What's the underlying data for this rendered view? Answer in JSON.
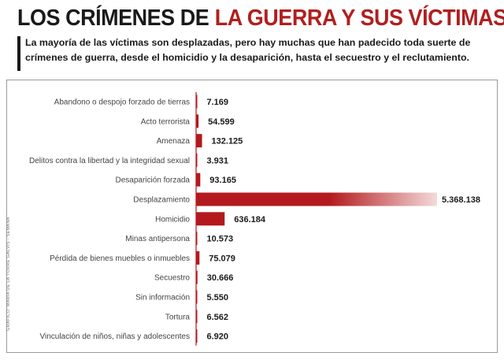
{
  "title": {
    "part1": "LOS CRÍMENES DE",
    "part2": "LA GUERRA Y SUS VÍCTIMAS"
  },
  "subtitle": "La mayoría de las víctimas son desplazadas, pero hay muchas que han padecido toda suerte de crímenes de guerra, desde el homicidio y la desaparición, hasta el secuestro y el reclutamiento.",
  "credit": "GRÁFICO: MARÍA DE LA TORRE GALVIS - SEMANA",
  "colors": {
    "bar": "#b3191d",
    "bar_light": "#f4dada",
    "axis": "#b3191d",
    "title_red": "#b01f1f"
  },
  "chart_data": {
    "type": "bar",
    "orientation": "horizontal",
    "categories": [
      "Abandono o despojo forzado de tierras",
      "Acto terrorista",
      "Amenaza",
      "Delitos contra la libertad y la integridad sexual",
      "Desaparición forzada",
      "Desplazamiento",
      "Homicidio",
      "Minas antipersona",
      "Pérdida de bienes muebles o inmuebles",
      "Secuestro",
      "Sin información",
      "Tortura",
      "Vinculación de niños, niñas y adolescentes"
    ],
    "values": [
      7169,
      54599,
      132125,
      3931,
      93165,
      5368138,
      636184,
      10573,
      75079,
      30666,
      5550,
      6562,
      6920
    ],
    "value_labels": [
      "7.169",
      "54.599",
      "132.125",
      "3.931",
      "93.165",
      "5.368.138",
      "636.184",
      "10.573",
      "75.079",
      "30.666",
      "5.550",
      "6.562",
      "6.920"
    ],
    "xlim": [
      0,
      5368138
    ]
  }
}
